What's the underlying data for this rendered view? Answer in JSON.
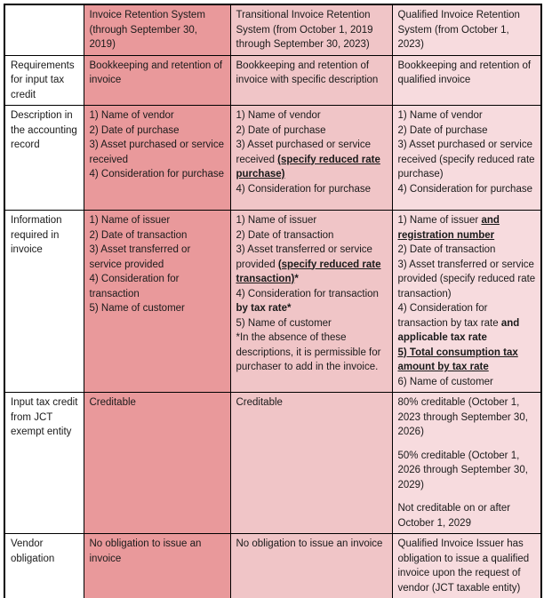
{
  "document": {
    "title": "Invoice Retention System comparison table"
  },
  "colors": {
    "column1_bg": "#e9999b",
    "column2_bg": "#f0c5c7",
    "column3_bg": "#f7dbde",
    "label_bg": "#ffffff",
    "border": "#000000",
    "text": "#1a1a1a"
  },
  "table": {
    "header_cells": [
      "",
      "Invoice Retention System (through September 30, 2019)",
      "Transitional Invoice Retention System (from October 1, 2019 through September 30, 2023)",
      "Qualified Invoice Retention System (from October 1, 2023)"
    ],
    "rows": [
      {
        "label": "Requirements for input tax credit",
        "cells": [
          {
            "blocks": [
              {
                "runs": [
                  {
                    "t": "Bookkeeping and retention of invoice"
                  }
                ]
              }
            ]
          },
          {
            "blocks": [
              {
                "runs": [
                  {
                    "t": "Bookkeeping and retention of invoice with specific description"
                  }
                ]
              }
            ]
          },
          {
            "blocks": [
              {
                "runs": [
                  {
                    "t": "Bookkeeping and retention of qualified invoice"
                  }
                ]
              }
            ]
          }
        ]
      },
      {
        "label": "Description in the accounting record",
        "cells": [
          {
            "blocks": [
              {
                "runs": [
                  {
                    "t": "1) Name of vendor"
                  }
                ]
              },
              {
                "runs": [
                  {
                    "t": "2) Date of purchase"
                  }
                ]
              },
              {
                "runs": [
                  {
                    "t": "3) Asset purchased or service received"
                  }
                ]
              },
              {
                "runs": [
                  {
                    "t": "4) Consideration for purchase"
                  }
                ]
              }
            ]
          },
          {
            "blocks": [
              {
                "runs": [
                  {
                    "t": "1) Name of vendor"
                  }
                ]
              },
              {
                "runs": [
                  {
                    "t": "2) Date of purchase"
                  }
                ]
              },
              {
                "runs": [
                  {
                    "t": "3) Asset purchased or service received "
                  },
                  {
                    "t": "(specify reduced rate purchase)",
                    "b": true,
                    "u": true
                  }
                ]
              },
              {
                "runs": [
                  {
                    "t": "4) Consideration for purchase"
                  }
                ]
              }
            ]
          },
          {
            "blocks": [
              {
                "runs": [
                  {
                    "t": "1) Name of vendor"
                  }
                ]
              },
              {
                "runs": [
                  {
                    "t": "2) Date of purchase"
                  }
                ]
              },
              {
                "runs": [
                  {
                    "t": "3) Asset purchased or service received (specify reduced rate purchase)"
                  }
                ]
              },
              {
                "runs": [
                  {
                    "t": "4) Consideration for purchase"
                  }
                ]
              }
            ]
          }
        ]
      },
      {
        "label": "Information required in invoice",
        "cells": [
          {
            "blocks": [
              {
                "runs": [
                  {
                    "t": "1) Name of issuer"
                  }
                ]
              },
              {
                "runs": [
                  {
                    "t": "2) Date of transaction"
                  }
                ]
              },
              {
                "runs": [
                  {
                    "t": "3) Asset transferred or service provided"
                  }
                ]
              },
              {
                "runs": [
                  {
                    "t": "4) Consideration for transaction"
                  }
                ]
              },
              {
                "runs": [
                  {
                    "t": "5) Name of customer"
                  }
                ]
              }
            ]
          },
          {
            "blocks": [
              {
                "runs": [
                  {
                    "t": "1) Name of issuer"
                  }
                ]
              },
              {
                "runs": [
                  {
                    "t": "2) Date of transaction"
                  }
                ]
              },
              {
                "runs": [
                  {
                    "t": "3) Asset transferred or service provided "
                  },
                  {
                    "t": "(specify reduced rate transaction)",
                    "b": true,
                    "u": true
                  },
                  {
                    "t": "*",
                    "b": true
                  }
                ]
              },
              {
                "runs": [
                  {
                    "t": "4) Consideration for transaction "
                  },
                  {
                    "t": "by tax rate*",
                    "b": true
                  }
                ]
              },
              {
                "runs": [
                  {
                    "t": "5) Name of customer"
                  }
                ]
              },
              {
                "runs": [
                  {
                    "t": "*In the absence of these descriptions, it is permissible for purchaser to add in the invoice."
                  }
                ]
              }
            ]
          },
          {
            "blocks": [
              {
                "runs": [
                  {
                    "t": "1) Name of issuer "
                  },
                  {
                    "t": "and registration number",
                    "b": true,
                    "u": true
                  }
                ]
              },
              {
                "runs": [
                  {
                    "t": "2) Date of transaction"
                  }
                ]
              },
              {
                "runs": [
                  {
                    "t": "3) Asset transferred or service provided (specify reduced rate transaction)"
                  }
                ]
              },
              {
                "runs": [
                  {
                    "t": "4) Consideration for transaction by tax rate "
                  },
                  {
                    "t": "and applicable tax rate",
                    "b": true
                  }
                ]
              },
              {
                "runs": [
                  {
                    "t": "5) Total consumption tax amount by tax rate",
                    "b": true,
                    "u": true
                  }
                ]
              },
              {
                "runs": [
                  {
                    "t": "6) Name of customer"
                  }
                ]
              }
            ]
          }
        ]
      },
      {
        "label": "Input tax credit from JCT exempt entity",
        "cells": [
          {
            "blocks": [
              {
                "runs": [
                  {
                    "t": "Creditable"
                  }
                ]
              }
            ]
          },
          {
            "blocks": [
              {
                "runs": [
                  {
                    "t": "Creditable"
                  }
                ]
              }
            ]
          },
          {
            "blocks": [
              {
                "runs": [
                  {
                    "t": "80% creditable (October 1, 2023 through September 30, 2026)"
                  }
                ]
              },
              {
                "gap": true,
                "runs": [
                  {
                    "t": "50% creditable (October 1, 2026 through September 30, 2029)"
                  }
                ]
              },
              {
                "gap": true,
                "runs": [
                  {
                    "t": "Not creditable on or after October 1, 2029"
                  }
                ]
              }
            ]
          }
        ]
      },
      {
        "label": "Vendor obligation",
        "cells": [
          {
            "blocks": [
              {
                "runs": [
                  {
                    "t": "No obligation to issue an invoice"
                  }
                ]
              }
            ]
          },
          {
            "blocks": [
              {
                "runs": [
                  {
                    "t": "No obligation to issue an invoice"
                  }
                ]
              }
            ]
          },
          {
            "blocks": [
              {
                "runs": [
                  {
                    "t": "Qualified Invoice Issuer has obligation to issue a qualified invoice upon the request of vendor (JCT taxable entity)"
                  }
                ]
              }
            ]
          }
        ]
      }
    ]
  }
}
